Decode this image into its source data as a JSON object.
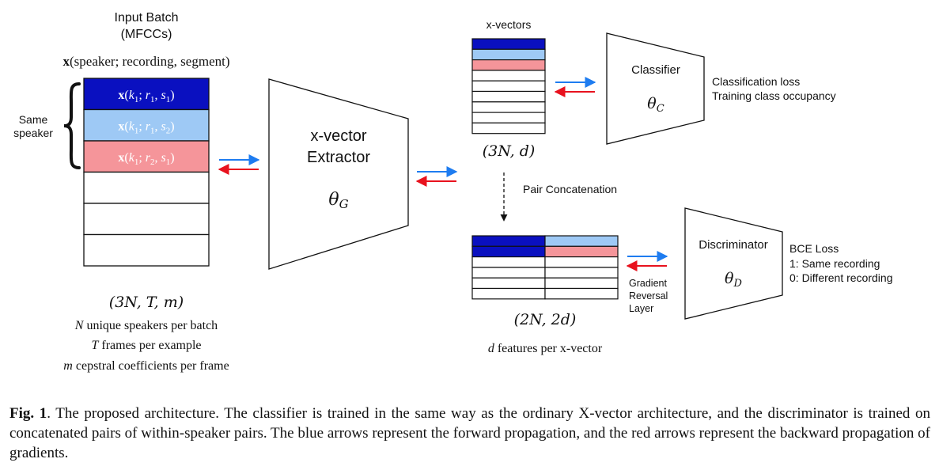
{
  "input": {
    "title_line1": "Input Batch",
    "title_line2": "(MFCCs)",
    "formula_bold": "x",
    "formula_rest": "(speaker; recording, segment)",
    "same_speaker_line1": "Same",
    "same_speaker_line2": "speaker",
    "rows": [
      {
        "label": "x(k1; r1, s1)",
        "fill": "#0a10c0",
        "text_color": "#ffffff"
      },
      {
        "label": "x(k1; r1, s2)",
        "fill": "#9ec9f5",
        "text_color": "#ffffff"
      },
      {
        "label": "x(k1; r2, s1)",
        "fill": "#f5959a",
        "text_color": "#ffffff"
      },
      {
        "label": "",
        "fill": "#ffffff"
      },
      {
        "label": "",
        "fill": "#ffffff"
      },
      {
        "label": "",
        "fill": "#ffffff"
      }
    ],
    "shape": "(3N, T, m)",
    "desc": [
      {
        "var": "N",
        "text": " unique speakers per batch"
      },
      {
        "var": "T",
        "text": " frames per example"
      },
      {
        "var": "m",
        "text": " cepstral coefficients per frame"
      }
    ]
  },
  "extractor": {
    "line1": "x-vector",
    "line2": "Extractor",
    "param": "θG"
  },
  "xvectors": {
    "title": "x-vectors",
    "shape": "(3N, d)",
    "rows": [
      "#0a10c0",
      "#9ec9f5",
      "#f5959a",
      "#ffffff",
      "#ffffff",
      "#ffffff",
      "#ffffff",
      "#ffffff",
      "#ffffff"
    ]
  },
  "classifier": {
    "label": "Classifier",
    "param": "θC",
    "outputs": [
      "Classification loss",
      "Training class occupancy"
    ]
  },
  "pair_concat": {
    "label": "Pair Concatenation"
  },
  "pairs": {
    "shape": "(2N, 2d)",
    "desc": "d features per x-vector",
    "desc_var": "d",
    "left_rows": [
      "#0a10c0",
      "#0a10c0",
      "#ffffff",
      "#ffffff",
      "#ffffff",
      "#ffffff"
    ],
    "right_rows": [
      "#9ec9f5",
      "#f5959a",
      "#ffffff",
      "#ffffff",
      "#ffffff",
      "#ffffff"
    ]
  },
  "grl": {
    "lines": [
      "Gradient",
      "Reversal",
      "Layer"
    ]
  },
  "discriminator": {
    "label": "Discriminator",
    "param": "θD",
    "outputs": [
      "BCE Loss",
      "1: Same recording",
      "0: Different recording"
    ]
  },
  "arrow_colors": {
    "forward": "#1e7cf0",
    "backward": "#e8121e"
  },
  "caption": {
    "fig": "Fig. 1",
    "text": ". The proposed architecture. The classifier is trained in the same way as the ordinary X-vector architecture, and the discriminator is trained on concatenated pairs of within-speaker pairs. The blue arrows represent the forward propagation, and the red arrows represent the backward propagation of gradients."
  }
}
